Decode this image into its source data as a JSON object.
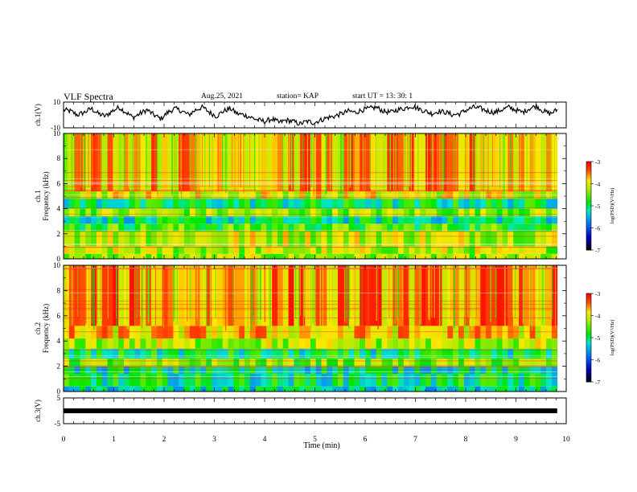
{
  "header": {
    "title": "VLF Spectra",
    "date": "Aug.25, 2021",
    "station": "station= KAP",
    "start": "start  UT  =   13: 30: 1"
  },
  "chart_data": [
    {
      "type": "line",
      "ylabel": "ch.1(V)",
      "ylim": [
        -10,
        10
      ],
      "y_ticks": [
        "10",
        "-10"
      ],
      "xlim": [
        0,
        10
      ],
      "data_xmax": 9.82,
      "series": [
        {
          "values": [
            4,
            3,
            0,
            2,
            5,
            1,
            -1,
            3,
            6,
            2,
            -2,
            1,
            4,
            0,
            -3,
            2,
            5,
            3,
            0,
            4,
            6,
            2,
            -1,
            3,
            5,
            1,
            0,
            -2,
            -4,
            -5,
            -3,
            -6,
            -4,
            -5,
            -7,
            -5,
            -6,
            -4,
            -2,
            -1,
            1,
            3,
            2,
            4,
            5,
            6,
            3,
            2,
            4,
            5,
            7,
            5,
            3,
            1,
            3,
            2,
            0,
            1,
            4,
            6,
            5,
            3,
            2,
            4,
            6,
            4,
            2,
            5,
            7,
            3,
            1,
            4
          ]
        }
      ]
    },
    {
      "type": "heatmap",
      "ylabel": "ch.1 Frequency  (kHz)",
      "ylim": [
        0,
        10
      ],
      "y_ticks": [
        "0",
        "2",
        "4",
        "6",
        "8",
        "10"
      ],
      "xlim": [
        0,
        10
      ],
      "data_xmax": 9.82,
      "colorbar": {
        "label": "log(PSD)(V²/Hz)",
        "range": [
          -7,
          -3
        ],
        "ticks": [
          "-3",
          "-4",
          "-5",
          "-6",
          "-7"
        ]
      },
      "bands": [
        {
          "f": [
            0.0,
            0.4
          ],
          "level": -4.3
        },
        {
          "f": [
            0.4,
            1.0
          ],
          "level": -4.2
        },
        {
          "f": [
            1.0,
            2.2
          ],
          "level": -4.1
        },
        {
          "f": [
            2.2,
            2.8
          ],
          "level": -4.6
        },
        {
          "f": [
            2.8,
            3.4
          ],
          "level": -5.1
        },
        {
          "f": [
            3.4,
            4.0
          ],
          "level": -4.3
        },
        {
          "f": [
            4.0,
            4.8
          ],
          "level": -5.0
        },
        {
          "f": [
            4.8,
            5.4
          ],
          "level": -4.0
        },
        {
          "f": [
            5.4,
            10.0
          ],
          "level": -3.7
        }
      ]
    },
    {
      "type": "heatmap",
      "ylabel": "ch.2 Frequency  (kHz)",
      "ylim": [
        0,
        10
      ],
      "y_ticks": [
        "0",
        "2",
        "4",
        "6",
        "8",
        "10"
      ],
      "xlim": [
        0,
        10
      ],
      "data_xmax": 9.82,
      "colorbar": {
        "label": "log(PSD)(V²/Hz)",
        "range": [
          -7,
          -3
        ],
        "ticks": [
          "-3",
          "-4",
          "-5",
          "-6",
          "-7"
        ]
      },
      "bands": [
        {
          "f": [
            0.0,
            0.4
          ],
          "level": -5.2
        },
        {
          "f": [
            0.4,
            1.4
          ],
          "level": -5.0
        },
        {
          "f": [
            1.4,
            2.0
          ],
          "level": -5.1
        },
        {
          "f": [
            2.0,
            2.6
          ],
          "level": -4.4
        },
        {
          "f": [
            2.6,
            3.4
          ],
          "level": -5.0
        },
        {
          "f": [
            3.4,
            4.2
          ],
          "level": -4.2
        },
        {
          "f": [
            4.2,
            5.2
          ],
          "level": -3.8
        },
        {
          "f": [
            5.2,
            10.0
          ],
          "level": -3.6
        }
      ]
    },
    {
      "type": "line",
      "ylabel": "ch.3(V)",
      "ylim": [
        -5,
        5
      ],
      "y_ticks": [
        "5",
        "-5"
      ],
      "xlim": [
        0,
        10
      ],
      "data_xmax": 9.82,
      "series": [
        {
          "values": [
            0,
            0,
            0,
            0,
            0,
            0,
            0,
            0,
            0,
            0,
            0,
            0
          ]
        }
      ]
    }
  ],
  "x_axis": {
    "label": "Time  (min)",
    "ticks": [
      "0",
      "1",
      "2",
      "3",
      "4",
      "5",
      "6",
      "7",
      "8",
      "9",
      "10"
    ]
  },
  "colors": {
    "line": "#000000",
    "axes": "#000000",
    "background": "#ffffff"
  }
}
